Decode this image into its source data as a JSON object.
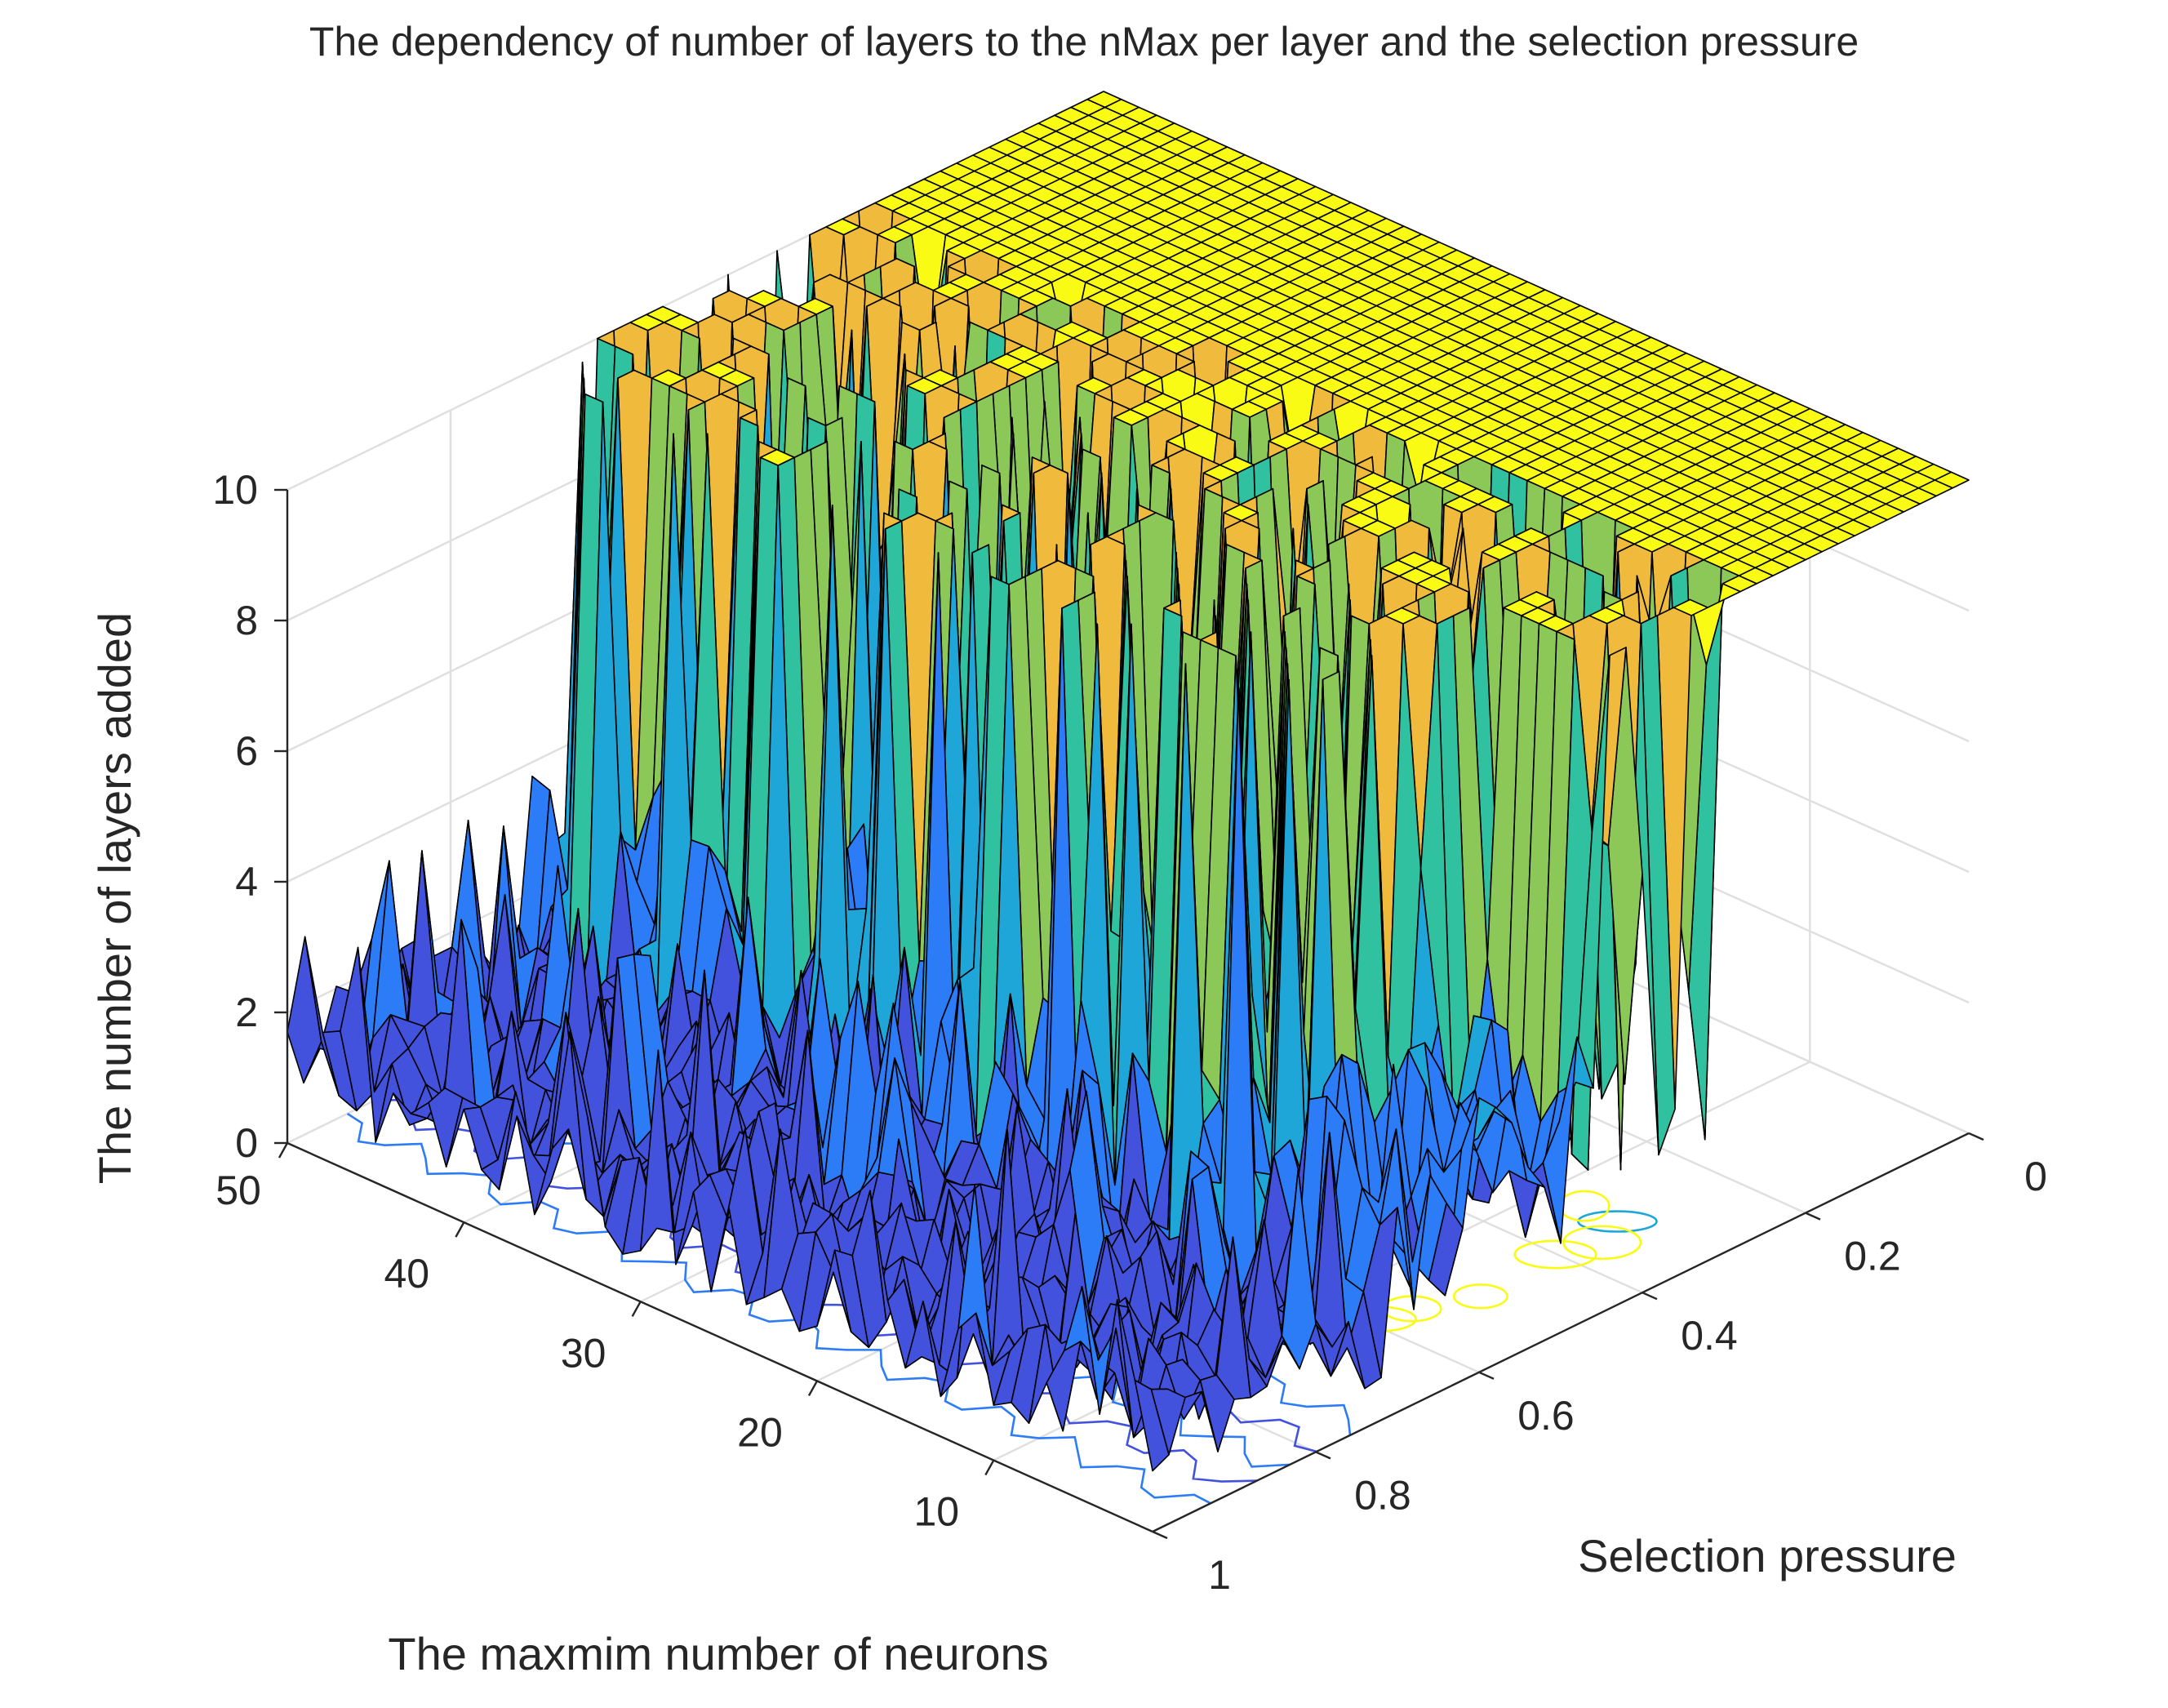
{
  "chart_data": {
    "type": "surface",
    "title": "The dependency of number of layers to the nMax per layer and the selection pressure",
    "xlabel": "The maxmim number of neurons",
    "ylabel": "Selection pressure",
    "zlabel": "The number of layers added",
    "x_ticks": [
      "10",
      "20",
      "30",
      "40",
      "50"
    ],
    "y_ticks": [
      "0",
      "0.2",
      "0.4",
      "0.6",
      "0.8",
      "1"
    ],
    "z_ticks": [
      "0",
      "2",
      "4",
      "6",
      "8",
      "10"
    ],
    "xlim": [
      1,
      50
    ],
    "ylim": [
      0,
      1
    ],
    "zlim": [
      0,
      10
    ],
    "grid": true,
    "colormap": [
      "#3e26a8",
      "#4352dd",
      "#2c7bf7",
      "#1fa6d8",
      "#2fc1a0",
      "#8bc857",
      "#f0ba3c",
      "#f9fb15"
    ],
    "surface": {
      "description_of_trend": "Values near 10 for selection pressure below ~0.25, highly variable 2-10 between 0.25 and 0.7, near 0-2 above 0.7",
      "y_transition_high": 0.25,
      "y_transition_low": 0.7,
      "plateau_value": 10,
      "floor_value": 1
    }
  }
}
